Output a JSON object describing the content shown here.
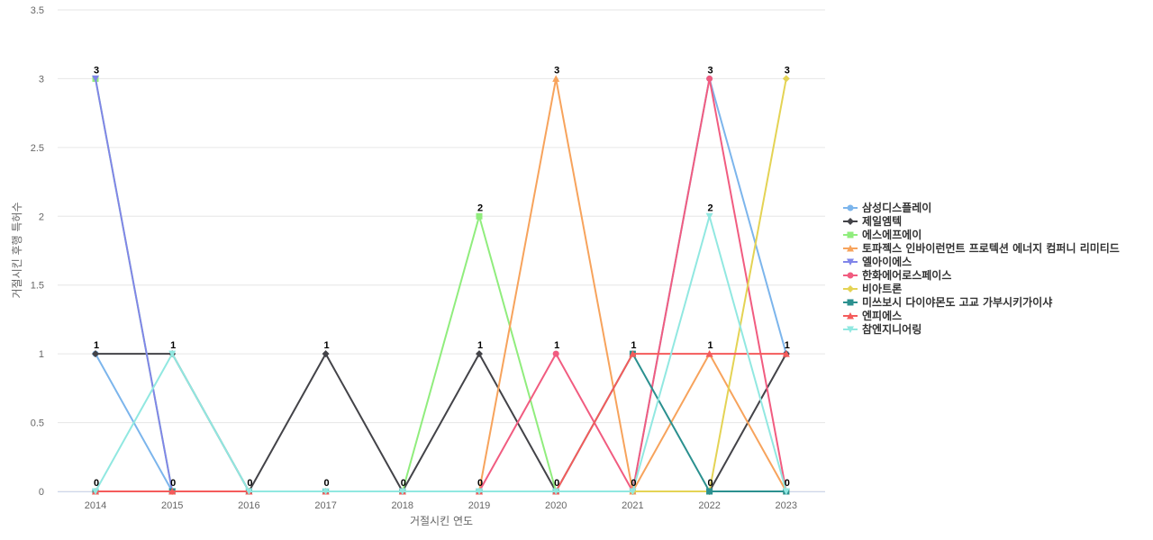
{
  "chart_data": {
    "type": "line",
    "title": "",
    "xlabel": "거절시킨 연도",
    "ylabel": "거절시킨 후행 특허수",
    "x": [
      "2014",
      "2015",
      "2016",
      "2017",
      "2018",
      "2019",
      "2020",
      "2021",
      "2022",
      "2023"
    ],
    "ylim": [
      0,
      3.5
    ],
    "yticks": [
      "0",
      "0.5",
      "1",
      "1.5",
      "2",
      "2.5",
      "3",
      "3.5"
    ],
    "grid": true,
    "legend_position": "right",
    "series": [
      {
        "name": "삼성디스플레이",
        "color": "#7cb5ec",
        "marker": "circle",
        "values": [
          1,
          0,
          0,
          0,
          0,
          0,
          0,
          0,
          3,
          1
        ]
      },
      {
        "name": "제일엠텍",
        "color": "#434348",
        "marker": "diamond",
        "values": [
          1,
          1,
          0,
          1,
          0,
          1,
          0,
          0,
          0,
          1
        ]
      },
      {
        "name": "에스에프에이",
        "color": "#90ed7d",
        "marker": "square",
        "values": [
          3,
          0,
          0,
          0,
          0,
          2,
          0,
          0,
          0,
          0
        ]
      },
      {
        "name": "토파젝스 인바이런먼트 프로텍션 에너지 컴퍼니 리미티드",
        "color": "#f7a35c",
        "marker": "triangle",
        "values": [
          0,
          0,
          0,
          0,
          0,
          0,
          3,
          0,
          1,
          0
        ]
      },
      {
        "name": "엘아이에스",
        "color": "#8085e9",
        "marker": "triangle-down",
        "values": [
          3,
          0,
          0,
          0,
          0,
          0,
          0,
          0,
          0,
          0
        ]
      },
      {
        "name": "한화에어로스페이스",
        "color": "#f15c80",
        "marker": "circle",
        "values": [
          0,
          0,
          0,
          0,
          0,
          0,
          1,
          0,
          3,
          0
        ]
      },
      {
        "name": "비아트론",
        "color": "#e4d354",
        "marker": "diamond",
        "values": [
          0,
          0,
          0,
          0,
          0,
          0,
          0,
          0,
          0,
          3
        ]
      },
      {
        "name": "미쓰보시 다이야몬도 고교 가부시키가이샤",
        "color": "#2b908f",
        "marker": "square",
        "values": [
          0,
          0,
          0,
          0,
          0,
          0,
          0,
          1,
          0,
          0
        ]
      },
      {
        "name": "엔피에스",
        "color": "#f45b5b",
        "marker": "triangle",
        "values": [
          0,
          0,
          0,
          0,
          0,
          0,
          0,
          1,
          1,
          1
        ]
      },
      {
        "name": "참엔지니어링",
        "color": "#91e8e1",
        "marker": "triangle-down",
        "values": [
          0,
          1,
          0,
          0,
          0,
          0,
          0,
          0,
          2,
          0
        ]
      }
    ],
    "data_labels": [
      {
        "x": "2014",
        "labels": [
          "3",
          "1",
          "0"
        ]
      },
      {
        "x": "2015",
        "labels": [
          "1",
          "0"
        ]
      },
      {
        "x": "2016",
        "labels": [
          "0"
        ]
      },
      {
        "x": "2017",
        "labels": [
          "1",
          "0"
        ]
      },
      {
        "x": "2018",
        "labels": [
          "0"
        ]
      },
      {
        "x": "2019",
        "labels": [
          "2",
          "1",
          "0"
        ]
      },
      {
        "x": "2020",
        "labels": [
          "3",
          "1",
          "0"
        ]
      },
      {
        "x": "2021",
        "labels": [
          "1",
          "0"
        ]
      },
      {
        "x": "2022",
        "labels": [
          "3",
          "2",
          "1",
          "0"
        ]
      },
      {
        "x": "2023",
        "labels": [
          "3",
          "1",
          "0"
        ]
      }
    ]
  }
}
